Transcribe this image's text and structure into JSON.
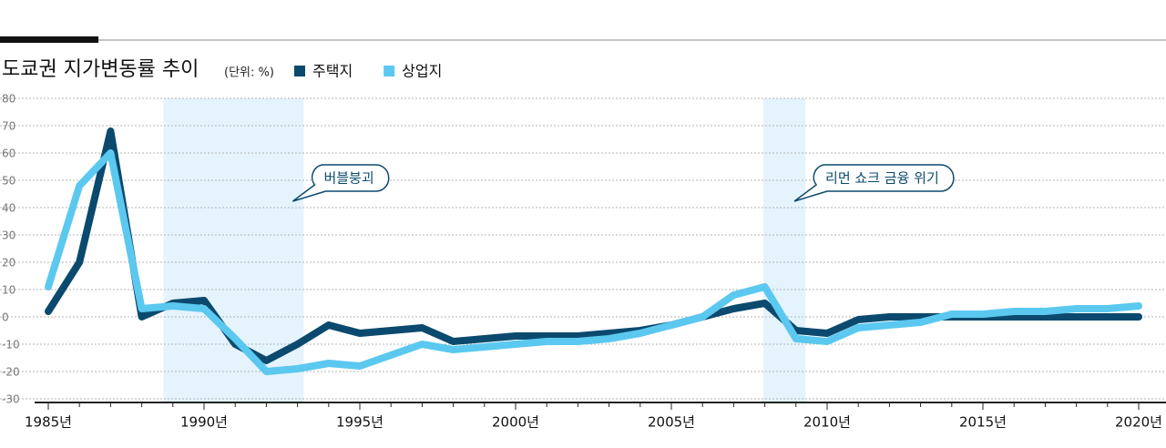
{
  "chart_data": {
    "type": "line",
    "title": "도쿄권 지가변동률 추이",
    "unit": "(단위: %)",
    "x": [
      1985,
      1986,
      1987,
      1988,
      1989,
      1990,
      1991,
      1992,
      1993,
      1994,
      1995,
      1996,
      1997,
      1998,
      1999,
      2000,
      2001,
      2002,
      2003,
      2004,
      2005,
      2006,
      2007,
      2008,
      2009,
      2010,
      2011,
      2012,
      2013,
      2014,
      2015,
      2016,
      2017,
      2018,
      2019,
      2020
    ],
    "series": [
      {
        "name": "주택지",
        "color": "#0b4a6e",
        "values": [
          2,
          20,
          68,
          0,
          5,
          6,
          -10,
          -16,
          -10,
          -3,
          -6,
          -5,
          -4,
          -9,
          -8,
          -7,
          -7,
          -7,
          -6,
          -5,
          -3,
          0,
          3,
          5,
          -5,
          -6,
          -1,
          0,
          0,
          0,
          0,
          0,
          0,
          0,
          0,
          0
        ]
      },
      {
        "name": "상업지",
        "color": "#5bc8f0",
        "values": [
          11,
          48,
          60,
          3,
          4,
          3,
          -8,
          -20,
          -19,
          -17,
          -18,
          -14,
          -10,
          -12,
          -11,
          -10,
          -9,
          -9,
          -8,
          -6,
          -3,
          0,
          8,
          11,
          -8,
          -9,
          -4,
          -3,
          -2,
          1,
          1,
          2,
          2,
          3,
          3,
          4
        ]
      }
    ],
    "xlim": [
      1985,
      2020
    ],
    "xticks": [
      {
        "value": 1985,
        "label": "1985년"
      },
      {
        "value": 1990,
        "label": "1990년"
      },
      {
        "value": 1995,
        "label": "1995년"
      },
      {
        "value": 2000,
        "label": "2000년"
      },
      {
        "value": 2005,
        "label": "2005년"
      },
      {
        "value": 2010,
        "label": "2010년"
      },
      {
        "value": 2015,
        "label": "2015년"
      },
      {
        "value": 2020,
        "label": "2020년"
      }
    ],
    "ylim": [
      -30,
      80
    ],
    "yticks": [
      -30,
      -20,
      -10,
      0,
      10,
      20,
      30,
      40,
      50,
      60,
      70,
      80
    ],
    "grid": true,
    "highlights": [
      {
        "from": 1988.7,
        "to": 1993.2,
        "label": "버블붕괴"
      },
      {
        "from": 2007.95,
        "to": 2009.3,
        "label": "리먼 쇼크 금융 위기"
      }
    ]
  }
}
